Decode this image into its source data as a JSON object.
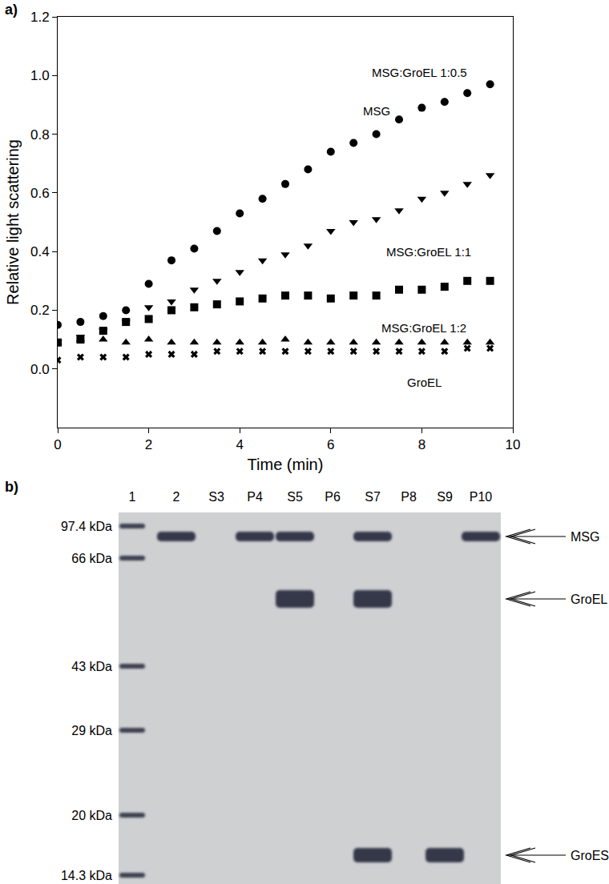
{
  "panel_labels": [
    "a)",
    "b)"
  ],
  "chart_data": {
    "type": "scatter",
    "x_label": "Time (min)",
    "y_label": "Relative light scattering",
    "x": [
      0,
      0.5,
      1,
      1.5,
      2,
      2.5,
      3,
      3.5,
      4,
      4.5,
      5,
      5.5,
      6,
      6.5,
      7,
      7.5,
      8,
      8.5,
      9,
      9.5
    ],
    "series": [
      {
        "name": "MSG",
        "color": "#000000",
        "marker": "circle",
        "values": [
          0.15,
          0.16,
          0.18,
          0.2,
          0.29,
          0.37,
          0.41,
          0.47,
          0.53,
          0.58,
          0.63,
          0.68,
          0.74,
          0.77,
          0.8,
          0.85,
          0.89,
          0.91,
          0.94,
          0.97
        ]
      },
      {
        "name": "MSG:GroEL 1:0.5",
        "color": "#000000",
        "marker": "triangle-down",
        "values": [
          0.09,
          0.11,
          0.13,
          0.16,
          0.21,
          0.23,
          0.27,
          0.3,
          0.33,
          0.37,
          0.39,
          0.42,
          0.47,
          0.5,
          0.51,
          0.54,
          0.58,
          0.6,
          0.63,
          0.66
        ]
      },
      {
        "name": "MSG:GroEL 1:1",
        "color": "#000000",
        "marker": "square",
        "values": [
          0.09,
          0.1,
          0.13,
          0.16,
          0.17,
          0.2,
          0.21,
          0.22,
          0.23,
          0.24,
          0.25,
          0.25,
          0.24,
          0.25,
          0.25,
          0.27,
          0.27,
          0.28,
          0.3,
          0.3
        ]
      },
      {
        "name": "MSG:GroEL 1:2",
        "color": "#000000",
        "marker": "triangle-up",
        "values": [
          0.09,
          0.1,
          0.1,
          0.09,
          0.1,
          0.09,
          0.09,
          0.09,
          0.09,
          0.09,
          0.1,
          0.09,
          0.09,
          0.09,
          0.09,
          0.09,
          0.09,
          0.09,
          0.09,
          0.09
        ]
      },
      {
        "name": "GroEL",
        "color": "#000000",
        "marker": "x",
        "values": [
          0.03,
          0.04,
          0.04,
          0.04,
          0.05,
          0.05,
          0.05,
          0.06,
          0.06,
          0.06,
          0.06,
          0.06,
          0.06,
          0.06,
          0.06,
          0.06,
          0.06,
          0.06,
          0.07,
          0.07
        ]
      }
    ],
    "xlim": [
      0,
      10
    ],
    "xticks": [
      0,
      2,
      4,
      6,
      8,
      10
    ],
    "ylim": [
      -0.2,
      1.2
    ],
    "yticks": [
      {
        "value": 0,
        "label": "0.0"
      },
      0.2,
      0.4,
      0.6,
      0.8,
      {
        "value": 1,
        "label": "1.0"
      },
      1.2
    ],
    "grid": false
  },
  "gel": {
    "marker_labels": [
      "97.4 kDa",
      "66 kDa",
      "43 kDa",
      "29 kDa",
      "20 kDa",
      "14.3 kDa"
    ],
    "proteins": [
      "MSG",
      "GroEL",
      "GroES"
    ],
    "lanes": [
      {
        "label": "1",
        "bands": [
          "97.4 kDa",
          "66 kDa",
          "43 kDa",
          "29 kDa",
          "20 kDa",
          "14.3 kDa"
        ]
      },
      {
        "label": "2",
        "bands": [
          "MSG"
        ]
      },
      {
        "label": "S3",
        "bands": []
      },
      {
        "label": "P4",
        "bands": [
          "MSG"
        ]
      },
      {
        "label": "S5",
        "bands": [
          "MSG",
          "GroEL"
        ]
      },
      {
        "label": "P6",
        "bands": []
      },
      {
        "label": "S7",
        "bands": [
          "MSG",
          "GroEL",
          "GroES"
        ]
      },
      {
        "label": "P8",
        "bands": []
      },
      {
        "label": "S9",
        "bands": [
          "GroES"
        ]
      },
      {
        "label": "P10",
        "bands": [
          "MSG"
        ]
      }
    ]
  }
}
